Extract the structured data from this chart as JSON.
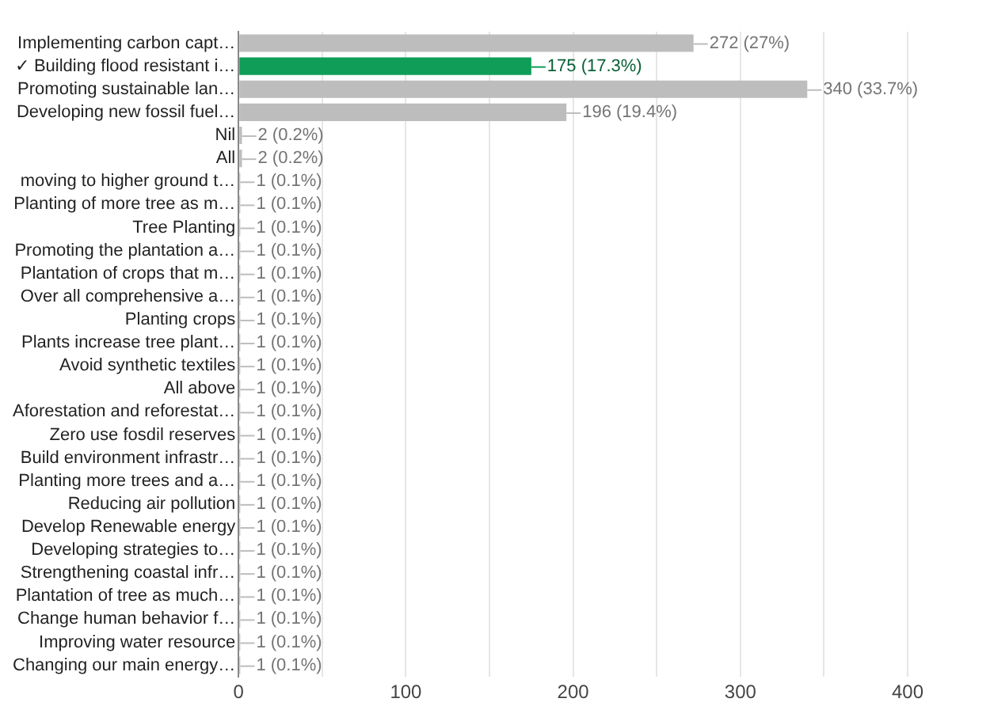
{
  "chart_data": {
    "type": "bar",
    "orientation": "horizontal",
    "categories": [
      "Implementing carbon capt…",
      "✓ Building flood resistant i…",
      "Promoting sustainable lan…",
      "Developing new fossil fuel…",
      "Nil",
      "All",
      "moving to higher ground t…",
      "Planting of more tree as m…",
      "Tree Planting",
      "Promoting the plantation a…",
      "Plantation of crops that m…",
      "Over all comprehensive a…",
      "Planting crops",
      "Plants increase tree plant…",
      "Avoid synthetic textiles",
      "All above",
      "Aforestation and reforestat…",
      "Zero use fosdil reserves",
      "Build environment infrastr…",
      "Planting more trees and a…",
      "Reducing air pollution",
      "Develop Renewable energy",
      "Developing strategies to…",
      "Strengthening coastal infr…",
      "Plantation of tree as much…",
      "Change human behavior f…",
      "Improving water resource",
      "Changing our main energy…"
    ],
    "values": [
      272,
      175,
      340,
      196,
      2,
      2,
      1,
      1,
      1,
      1,
      1,
      1,
      1,
      1,
      1,
      1,
      1,
      1,
      1,
      1,
      1,
      1,
      1,
      1,
      1,
      1,
      1,
      1
    ],
    "colors": [
      "#bdbdbd",
      "#0f9d58",
      "#bdbdbd",
      "#bdbdbd",
      "#bdbdbd",
      "#bdbdbd",
      "#bdbdbd",
      "#bdbdbd",
      "#bdbdbd",
      "#bdbdbd",
      "#bdbdbd",
      "#bdbdbd",
      "#bdbdbd",
      "#bdbdbd",
      "#bdbdbd",
      "#bdbdbd",
      "#bdbdbd",
      "#bdbdbd",
      "#bdbdbd",
      "#bdbdbd",
      "#bdbdbd",
      "#bdbdbd",
      "#bdbdbd",
      "#bdbdbd",
      "#bdbdbd",
      "#bdbdbd",
      "#bdbdbd",
      "#bdbdbd"
    ],
    "value_labels": [
      "272 (27%)",
      "175 (17.3%)",
      "340 (33.7%)",
      "196 (19.4%)",
      "2 (0.2%)",
      "2 (0.2%)",
      "1 (0.1%)",
      "1 (0.1%)",
      "1 (0.1%)",
      "1 (0.1%)",
      "1 (0.1%)",
      "1 (0.1%)",
      "1 (0.1%)",
      "1 (0.1%)",
      "1 (0.1%)",
      "1 (0.1%)",
      "1 (0.1%)",
      "1 (0.1%)",
      "1 (0.1%)",
      "1 (0.1%)",
      "1 (0.1%)",
      "1 (0.1%)",
      "1 (0.1%)",
      "1 (0.1%)",
      "1 (0.1%)",
      "1 (0.1%)",
      "1 (0.1%)",
      "1 (0.1%)"
    ],
    "xlim": [
      0,
      400
    ],
    "xticks": [
      0,
      {
        "value": 50,
        "label": null
      },
      100,
      {
        "value": 150,
        "label": null
      },
      200,
      {
        "value": 250,
        "label": null
      },
      300,
      {
        "value": 350,
        "label": null
      },
      400
    ],
    "grid": true,
    "legend": false
  }
}
